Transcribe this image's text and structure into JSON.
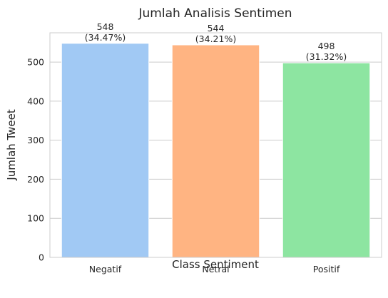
{
  "chart_data": {
    "type": "bar",
    "title": "Jumlah Analisis Sentimen",
    "xlabel": "Class Sentiment",
    "ylabel": "Jumlah Tweet",
    "categories": [
      "Negatif",
      "Netral",
      "Positif"
    ],
    "values": [
      548,
      544,
      498
    ],
    "percent_labels": [
      "(34.47%)",
      "(34.21%)",
      "(31.32%)"
    ],
    "value_labels": [
      "548",
      "544",
      "498"
    ],
    "ylim": [
      0,
      575
    ],
    "yticks": [
      0,
      100,
      200,
      300,
      400,
      500
    ],
    "ytick_labels": [
      "0",
      "100",
      "200",
      "300",
      "400",
      "500"
    ],
    "colors": [
      "#a1c9f4",
      "#ffb482",
      "#8de5a1"
    ],
    "grid": "y-major",
    "legend": "none"
  }
}
